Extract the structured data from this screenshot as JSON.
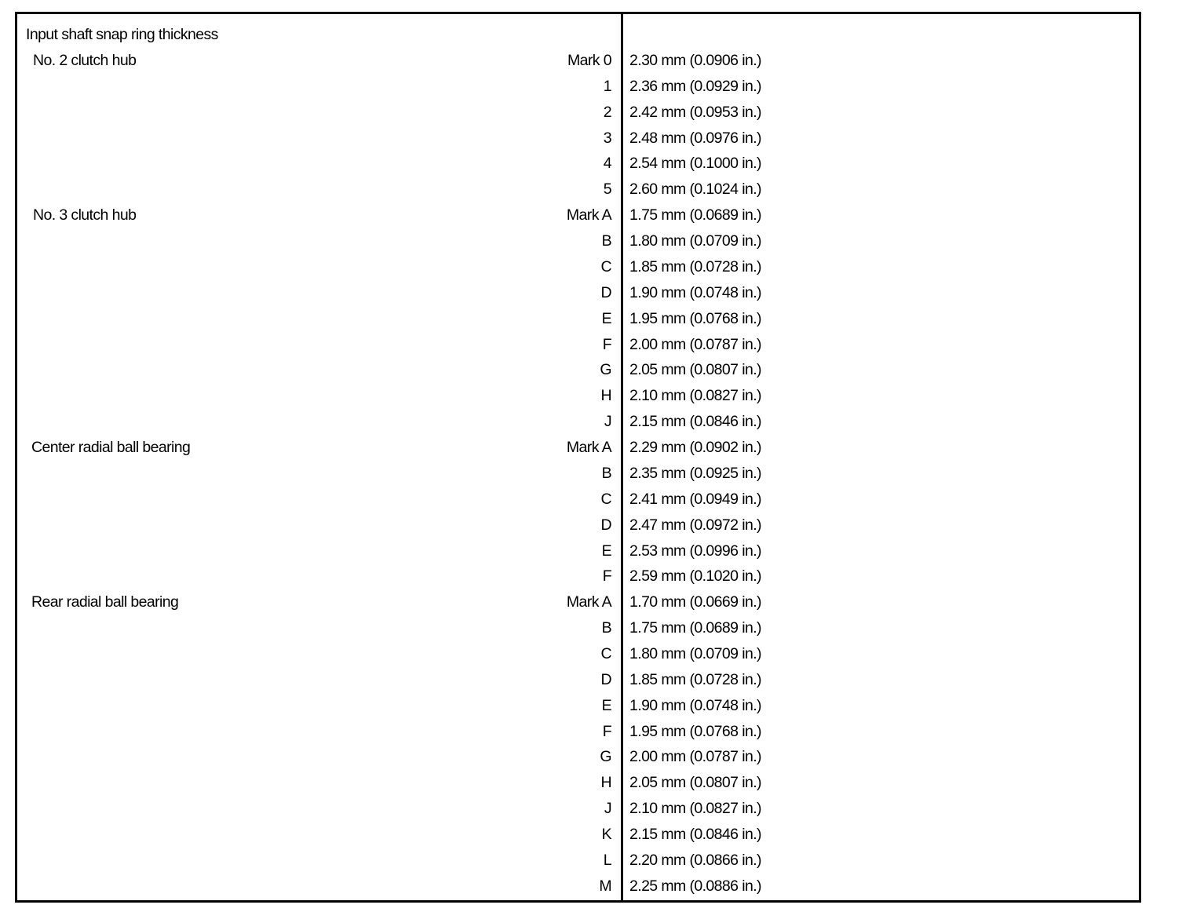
{
  "title": "Input shaft snap ring thickness",
  "groups": [
    {
      "label": "No. 2 clutch hub",
      "rows": [
        {
          "mark": "Mark 0",
          "value": "2.30 mm (0.0906 in.)"
        },
        {
          "mark": "1",
          "value": "2.36 mm (0.0929 in.)"
        },
        {
          "mark": "2",
          "value": "2.42 mm (0.0953 in.)"
        },
        {
          "mark": "3",
          "value": "2.48 mm (0.0976 in.)"
        },
        {
          "mark": "4",
          "value": "2.54 mm (0.1000 in.)"
        },
        {
          "mark": "5",
          "value": "2.60 mm (0.1024 in.)"
        }
      ]
    },
    {
      "label": "No. 3 clutch hub",
      "rows": [
        {
          "mark": "Mark A",
          "value": "1.75 mm (0.0689 in.)"
        },
        {
          "mark": "B",
          "value": "1.80 mm (0.0709 in.)"
        },
        {
          "mark": "C",
          "value": "1.85 mm (0.0728 in.)"
        },
        {
          "mark": "D",
          "value": "1.90 mm (0.0748 in.)"
        },
        {
          "mark": "E",
          "value": "1.95 mm (0.0768 in.)"
        },
        {
          "mark": "F",
          "value": "2.00 mm (0.0787 in.)"
        },
        {
          "mark": "G",
          "value": "2.05 mm (0.0807 in.)"
        },
        {
          "mark": "H",
          "value": "2.10 mm (0.0827 in.)"
        },
        {
          "mark": "J",
          "value": "2.15 mm (0.0846 in.)"
        }
      ]
    },
    {
      "label": "Center radial ball bearing",
      "rows": [
        {
          "mark": "Mark A",
          "value": "2.29 mm (0.0902 in.)"
        },
        {
          "mark": "B",
          "value": "2.35 mm (0.0925 in.)"
        },
        {
          "mark": "C",
          "value": "2.41 mm (0.0949 in.)"
        },
        {
          "mark": "D",
          "value": "2.47 mm (0.0972 in.)"
        },
        {
          "mark": "E",
          "value": "2.53 mm (0.0996 in.)"
        },
        {
          "mark": "F",
          "value": "2.59 mm (0.1020 in.)"
        }
      ]
    },
    {
      "label": "Rear radial ball bearing",
      "rows": [
        {
          "mark": "Mark A",
          "value": "1.70 mm (0.0669 in.)"
        },
        {
          "mark": "B",
          "value": "1.75 mm (0.0689 in.)"
        },
        {
          "mark": "C",
          "value": "1.80 mm (0.0709 in.)"
        },
        {
          "mark": "D",
          "value": "1.85 mm (0.0728 in.)"
        },
        {
          "mark": "E",
          "value": "1.90 mm (0.0748 in.)"
        },
        {
          "mark": "F",
          "value": "1.95 mm (0.0768 in.)"
        },
        {
          "mark": "G",
          "value": "2.00 mm (0.0787 in.)"
        },
        {
          "mark": "H",
          "value": "2.05 mm (0.0807 in.)"
        },
        {
          "mark": "J",
          "value": "2.10 mm (0.0827 in.)"
        },
        {
          "mark": "K",
          "value": "2.15 mm (0.0846 in.)"
        },
        {
          "mark": "L",
          "value": "2.20 mm (0.0866 in.)"
        },
        {
          "mark": "M",
          "value": "2.25 mm (0.0886 in.)"
        }
      ]
    }
  ]
}
